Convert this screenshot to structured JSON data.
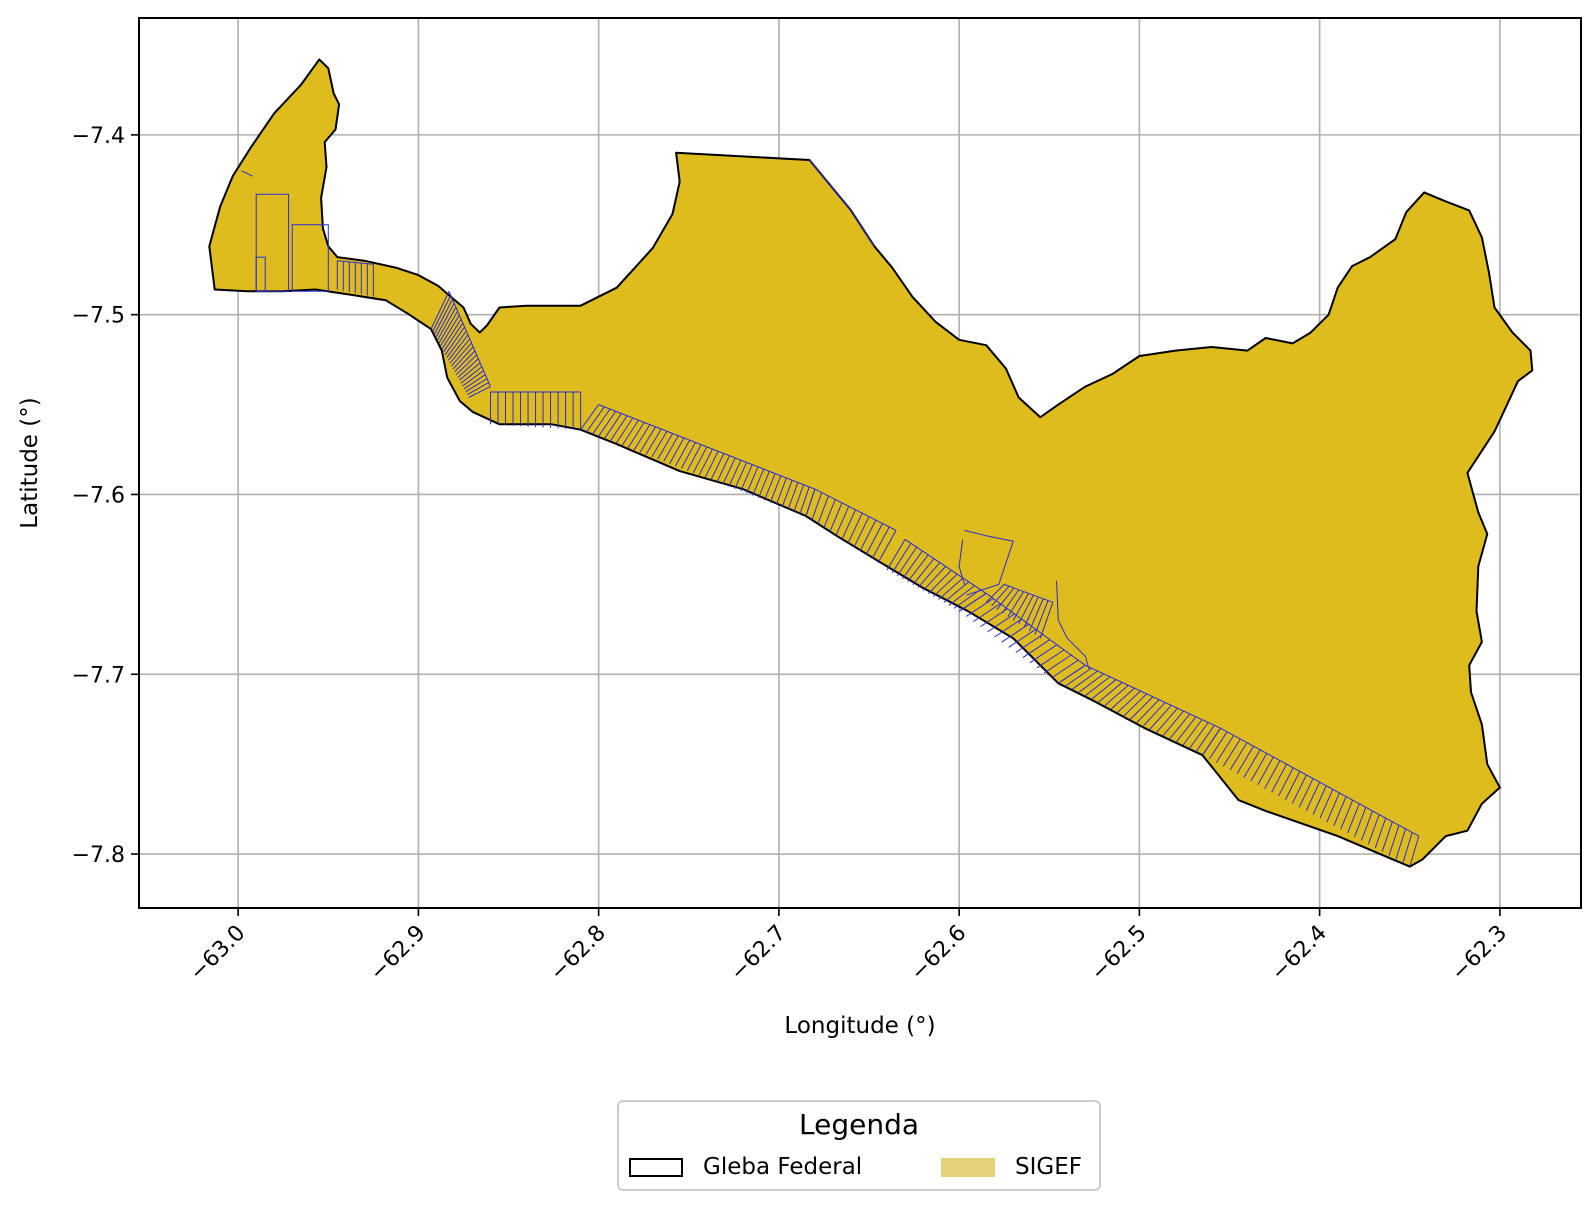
{
  "chart_data": {
    "type": "map",
    "xlabel": "Longitude (°)",
    "ylabel": "Latitude (°)",
    "xlim": [
      -63.055,
      -62.255
    ],
    "ylim": [
      -7.83,
      -7.335
    ],
    "grid": true,
    "xticks": [
      -63.0,
      -62.9,
      -62.8,
      -62.7,
      -62.6,
      -62.5,
      -62.4,
      -62.3
    ],
    "xtick_labels": [
      "−63.0",
      "−62.9",
      "−62.8",
      "−62.7",
      "−62.6",
      "−62.5",
      "−62.4",
      "−62.3"
    ],
    "yticks": [
      -7.4,
      -7.5,
      -7.6,
      -7.7,
      -7.8
    ],
    "ytick_labels": [
      "−7.4",
      "−7.5",
      "−7.6",
      "−7.7",
      "−7.8"
    ],
    "layers": [
      {
        "name": "Gleba Federal",
        "fill": "#dfbc1e",
        "edge": "#000000"
      },
      {
        "name": "SIGEF",
        "edge": "#2a2ad8",
        "legend_fill": "#e6d27a"
      }
    ],
    "gleba_outline": [
      [
        -62.955,
        -7.358
      ],
      [
        -62.95,
        -7.363
      ],
      [
        -62.947,
        -7.377
      ],
      [
        -62.944,
        -7.383
      ],
      [
        -62.946,
        -7.397
      ],
      [
        -62.952,
        -7.404
      ],
      [
        -62.951,
        -7.418
      ],
      [
        -62.954,
        -7.435
      ],
      [
        -62.953,
        -7.452
      ],
      [
        -62.95,
        -7.462
      ],
      [
        -62.945,
        -7.468
      ],
      [
        -62.93,
        -7.47
      ],
      [
        -62.912,
        -7.474
      ],
      [
        -62.9,
        -7.478
      ],
      [
        -62.889,
        -7.484
      ],
      [
        -62.882,
        -7.49
      ],
      [
        -62.875,
        -7.496
      ],
      [
        -62.871,
        -7.505
      ],
      [
        -62.866,
        -7.51
      ],
      [
        -62.862,
        -7.506
      ],
      [
        -62.855,
        -7.496
      ],
      [
        -62.84,
        -7.495
      ],
      [
        -62.81,
        -7.495
      ],
      [
        -62.79,
        -7.485
      ],
      [
        -62.77,
        -7.463
      ],
      [
        -62.759,
        -7.444
      ],
      [
        -62.755,
        -7.426
      ],
      [
        -62.757,
        -7.41
      ],
      [
        -62.683,
        -7.414
      ],
      [
        -62.66,
        -7.442
      ],
      [
        -62.647,
        -7.462
      ],
      [
        -62.637,
        -7.474
      ],
      [
        -62.626,
        -7.49
      ],
      [
        -62.613,
        -7.504
      ],
      [
        -62.6,
        -7.514
      ],
      [
        -62.585,
        -7.517
      ],
      [
        -62.574,
        -7.53
      ],
      [
        -62.567,
        -7.546
      ],
      [
        -62.555,
        -7.557
      ],
      [
        -62.545,
        -7.55
      ],
      [
        -62.53,
        -7.54
      ],
      [
        -62.515,
        -7.533
      ],
      [
        -62.5,
        -7.523
      ],
      [
        -62.48,
        -7.52
      ],
      [
        -62.46,
        -7.518
      ],
      [
        -62.44,
        -7.52
      ],
      [
        -62.43,
        -7.513
      ],
      [
        -62.415,
        -7.516
      ],
      [
        -62.405,
        -7.51
      ],
      [
        -62.395,
        -7.5
      ],
      [
        -62.39,
        -7.485
      ],
      [
        -62.382,
        -7.473
      ],
      [
        -62.372,
        -7.468
      ],
      [
        -62.358,
        -7.458
      ],
      [
        -62.352,
        -7.443
      ],
      [
        -62.342,
        -7.432
      ],
      [
        -62.33,
        -7.437
      ],
      [
        -62.317,
        -7.442
      ],
      [
        -62.31,
        -7.457
      ],
      [
        -62.306,
        -7.477
      ],
      [
        -62.303,
        -7.496
      ],
      [
        -62.293,
        -7.51
      ],
      [
        -62.283,
        -7.52
      ],
      [
        -62.282,
        -7.531
      ],
      [
        -62.29,
        -7.537
      ],
      [
        -62.296,
        -7.55
      ],
      [
        -62.303,
        -7.565
      ],
      [
        -62.318,
        -7.588
      ],
      [
        -62.312,
        -7.61
      ],
      [
        -62.307,
        -7.622
      ],
      [
        -62.312,
        -7.64
      ],
      [
        -62.313,
        -7.665
      ],
      [
        -62.31,
        -7.682
      ],
      [
        -62.317,
        -7.695
      ],
      [
        -62.316,
        -7.71
      ],
      [
        -62.31,
        -7.728
      ],
      [
        -62.307,
        -7.75
      ],
      [
        -62.3,
        -7.763
      ],
      [
        -62.31,
        -7.772
      ],
      [
        -62.318,
        -7.787
      ],
      [
        -62.33,
        -7.79
      ],
      [
        -62.343,
        -7.803
      ],
      [
        -62.35,
        -7.807
      ],
      [
        -62.39,
        -7.79
      ],
      [
        -62.43,
        -7.776
      ],
      [
        -62.445,
        -7.77
      ],
      [
        -62.465,
        -7.745
      ],
      [
        -62.497,
        -7.73
      ],
      [
        -62.525,
        -7.715
      ],
      [
        -62.545,
        -7.705
      ],
      [
        -62.57,
        -7.68
      ],
      [
        -62.595,
        -7.665
      ],
      [
        -62.62,
        -7.652
      ],
      [
        -62.64,
        -7.64
      ],
      [
        -62.668,
        -7.623
      ],
      [
        -62.685,
        -7.612
      ],
      [
        -62.72,
        -7.597
      ],
      [
        -62.755,
        -7.587
      ],
      [
        -62.79,
        -7.572
      ],
      [
        -62.81,
        -7.564
      ],
      [
        -62.826,
        -7.561
      ],
      [
        -62.855,
        -7.561
      ],
      [
        -62.87,
        -7.554
      ],
      [
        -62.877,
        -7.548
      ],
      [
        -62.884,
        -7.535
      ],
      [
        -62.887,
        -7.52
      ],
      [
        -62.893,
        -7.508
      ],
      [
        -62.905,
        -7.5
      ],
      [
        -62.918,
        -7.492
      ],
      [
        -62.937,
        -7.489
      ],
      [
        -62.957,
        -7.486
      ],
      [
        -62.975,
        -7.487
      ],
      [
        -62.995,
        -7.487
      ],
      [
        -63.013,
        -7.486
      ],
      [
        -63.016,
        -7.462
      ],
      [
        -63.01,
        -7.44
      ],
      [
        -63.003,
        -7.423
      ],
      [
        -62.993,
        -7.407
      ],
      [
        -62.98,
        -7.388
      ],
      [
        -62.965,
        -7.372
      ],
      [
        -62.955,
        -7.358
      ]
    ],
    "sigef_parcels": [
      [
        [
          -62.99,
          -7.433
        ],
        [
          -62.972,
          -7.433
        ],
        [
          -62.972,
          -7.487
        ],
        [
          -62.99,
          -7.487
        ]
      ],
      [
        [
          -62.99,
          -7.468
        ],
        [
          -62.985,
          -7.468
        ],
        [
          -62.985,
          -7.487
        ],
        [
          -62.99,
          -7.487
        ]
      ],
      [
        [
          -62.97,
          -7.45
        ],
        [
          -62.95,
          -7.45
        ],
        [
          -62.95,
          -7.487
        ],
        [
          -62.97,
          -7.487
        ]
      ],
      [
        [
          -62.998,
          -7.42
        ],
        [
          -62.992,
          -7.423
        ]
      ]
    ],
    "sigef_strips": [
      {
        "from": [
          [
            -62.893,
            -7.508
          ],
          [
            -62.883,
            -7.487
          ]
        ],
        "to": [
          [
            -62.872,
            -7.546
          ],
          [
            -62.86,
            -7.54
          ]
        ],
        "n": 24
      },
      {
        "from": [
          [
            -62.86,
            -7.561
          ],
          [
            -62.86,
            -7.543
          ]
        ],
        "to": [
          [
            -62.81,
            -7.564
          ],
          [
            -62.81,
            -7.543
          ]
        ],
        "n": 12
      },
      {
        "from": [
          [
            -62.81,
            -7.564
          ],
          [
            -62.8,
            -7.55
          ]
        ],
        "to": [
          [
            -62.685,
            -7.612
          ],
          [
            -62.68,
            -7.597
          ]
        ],
        "n": 38
      },
      {
        "from": [
          [
            -62.685,
            -7.612
          ],
          [
            -62.68,
            -7.597
          ]
        ],
        "to": [
          [
            -62.645,
            -7.638
          ],
          [
            -62.635,
            -7.62
          ]
        ],
        "n": 12
      },
      {
        "from": [
          [
            -62.64,
            -7.642
          ],
          [
            -62.63,
            -7.625
          ]
        ],
        "to": [
          [
            -62.6,
            -7.665
          ],
          [
            -62.585,
            -7.655
          ]
        ],
        "n": 14
      },
      {
        "from": [
          [
            -62.6,
            -7.665
          ],
          [
            -62.585,
            -7.655
          ]
        ],
        "to": [
          [
            -62.545,
            -7.705
          ],
          [
            -62.53,
            -7.695
          ]
        ],
        "n": 14
      },
      {
        "from": [
          [
            -62.545,
            -7.705
          ],
          [
            -62.53,
            -7.695
          ]
        ],
        "to": [
          [
            -62.465,
            -7.745
          ],
          [
            -62.455,
            -7.73
          ]
        ],
        "n": 22
      },
      {
        "from": [
          [
            -62.465,
            -7.745
          ],
          [
            -62.455,
            -7.73
          ]
        ],
        "to": [
          [
            -62.35,
            -7.807
          ],
          [
            -62.345,
            -7.79
          ]
        ],
        "n": 30
      },
      {
        "from": [
          [
            -62.585,
            -7.66
          ],
          [
            -62.575,
            -7.65
          ]
        ],
        "to": [
          [
            -62.555,
            -7.68
          ],
          [
            -62.548,
            -7.66
          ]
        ],
        "n": 10
      },
      {
        "from": [
          [
            -62.945,
            -7.486
          ],
          [
            -62.945,
            -7.47
          ]
        ],
        "to": [
          [
            -62.925,
            -7.49
          ],
          [
            -62.925,
            -7.472
          ]
        ],
        "n": 6
      }
    ],
    "sigef_extra": [
      [
        [
          -62.683,
          -7.414
        ],
        [
          -62.66,
          -7.442
        ],
        [
          -62.647,
          -7.462
        ]
      ],
      [
        [
          -62.597,
          -7.62
        ],
        [
          -62.585,
          -7.623
        ],
        [
          -62.57,
          -7.626
        ],
        [
          -62.578,
          -7.65
        ],
        [
          -62.596,
          -7.656
        ]
      ],
      [
        [
          -62.546,
          -7.648
        ],
        [
          -62.545,
          -7.67
        ],
        [
          -62.54,
          -7.68
        ],
        [
          -62.53,
          -7.69
        ],
        [
          -62.528,
          -7.697
        ]
      ],
      [
        [
          -62.598,
          -7.625
        ],
        [
          -62.6,
          -7.64
        ],
        [
          -62.597,
          -7.65
        ]
      ]
    ]
  },
  "legend": {
    "title": "Legenda",
    "items": [
      {
        "label": "Gleba Federal"
      },
      {
        "label": "SIGEF"
      }
    ]
  }
}
